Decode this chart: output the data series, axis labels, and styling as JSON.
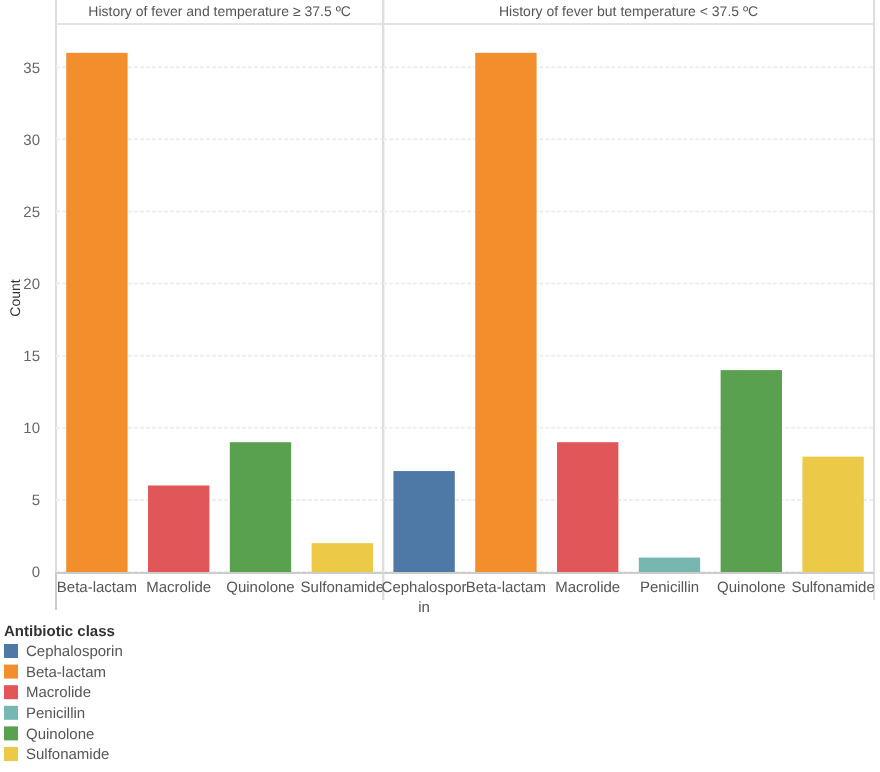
{
  "chart_data": [
    {
      "type": "bar",
      "title": "History of fever and temperature ≥ 37.5 ºC",
      "ylabel": "Count",
      "categories": [
        "Beta-lactam",
        "Macrolide",
        "Quinolone",
        "Sulfonamide"
      ],
      "values": [
        36,
        6,
        9,
        2
      ],
      "colors": [
        "#f28e2b",
        "#e15759",
        "#59a14f",
        "#edc948"
      ],
      "ylim": [
        0,
        38
      ],
      "yticks": [
        0,
        5,
        10,
        15,
        20,
        25,
        30,
        35
      ],
      "grid": "y"
    },
    {
      "type": "bar",
      "title": "History of fever but temperature < 37.5 ºC",
      "categories": [
        "Cephalosporin",
        "Beta-lactam",
        "Macrolide",
        "Penicillin",
        "Quinolone",
        "Sulfonamide"
      ],
      "stacked": true,
      "legend": "bottom left",
      "legend_title": "Antibiotic class",
      "ylim": [
        0,
        38
      ],
      "yticks": [
        0,
        5,
        10,
        15,
        20,
        25,
        30,
        35
      ],
      "grid": "y",
      "tick_labels": "x",
      "series": [
        {
          "name": "Cephalosporin",
          "color": "#4e79a7",
          "values": [
            7,
            null,
            null,
            null,
            null,
            null
          ]
        },
        {
          "name": "Beta-lactam",
          "color": "#f28e2b",
          "values": [
            null,
            36,
            null,
            null,
            null,
            null
          ]
        },
        {
          "name": "Macrolide",
          "color": "#e15759",
          "values": [
            null,
            null,
            9,
            null,
            null,
            null
          ]
        },
        {
          "name": "Penicillin",
          "color": "#76b7b2",
          "values": [
            null,
            null,
            null,
            1,
            null,
            null
          ]
        },
        {
          "name": "Quinolone",
          "color": "#59a14f",
          "values": [
            null,
            null,
            null,
            null,
            14,
            null
          ]
        },
        {
          "name": "Sulfonamide",
          "color": "#edc948",
          "values": [
            null,
            null,
            null,
            null,
            null,
            8
          ]
        }
      ]
    }
  ]
}
